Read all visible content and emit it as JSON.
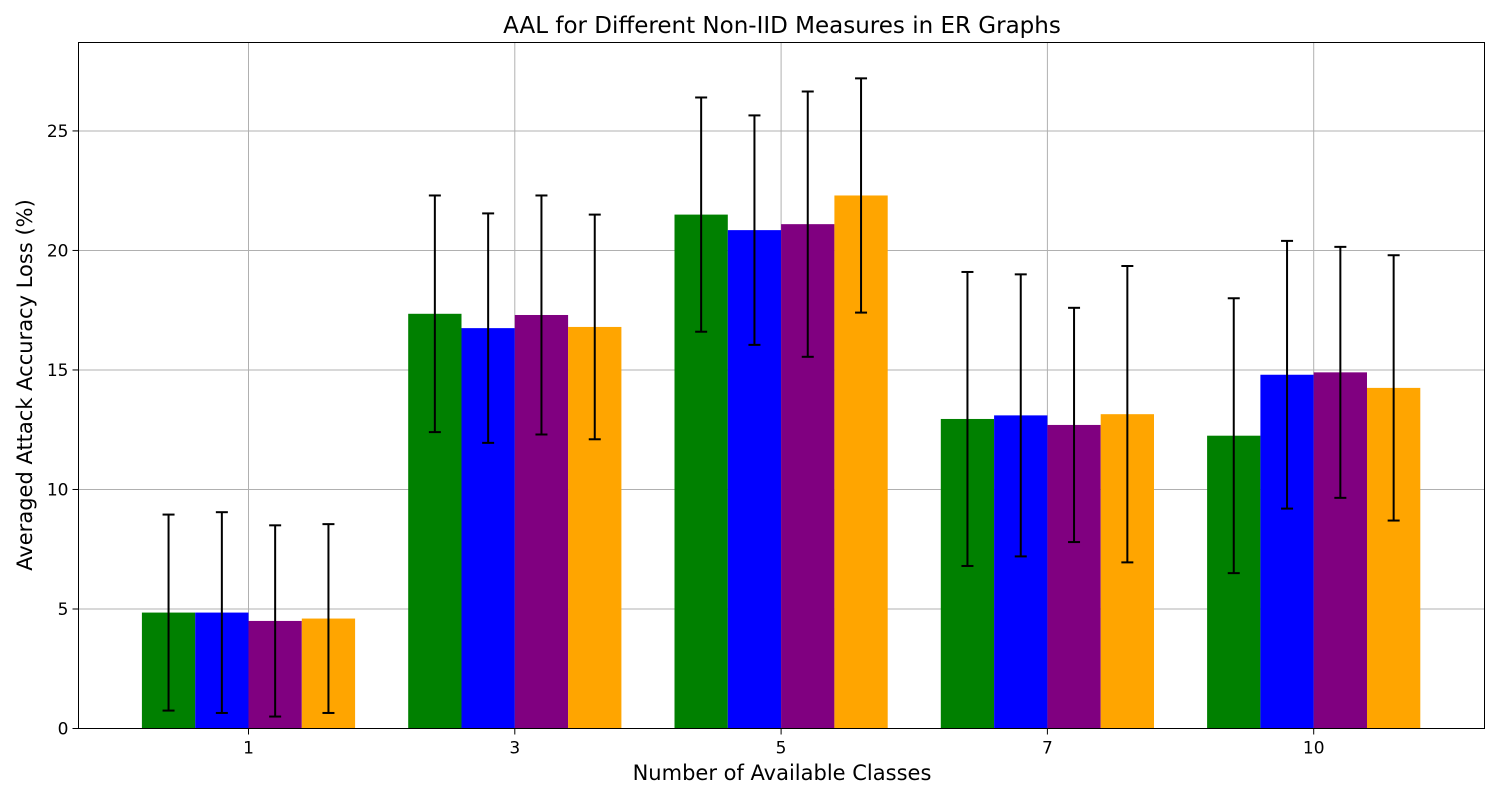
{
  "chart_data": {
    "type": "bar",
    "title": "AAL for Different Non-IID Measures in ER Graphs",
    "xlabel": "Number of Available Classes",
    "ylabel": "Averaged Attack Accuracy Loss (%)",
    "categories": [
      "1",
      "3",
      "5",
      "7",
      "10"
    ],
    "ylim": [
      0,
      28.7
    ],
    "yticks": [
      0,
      5,
      10,
      15,
      20,
      25
    ],
    "grid": true,
    "legend": "none",
    "series": [
      {
        "color": "#008000",
        "values": [
          4.85,
          17.35,
          21.5,
          12.95,
          12.25
        ],
        "errors": [
          4.1,
          4.95,
          4.9,
          6.15,
          5.75
        ]
      },
      {
        "color": "#0000ff",
        "values": [
          4.85,
          16.75,
          20.85,
          13.1,
          14.8
        ],
        "errors": [
          4.2,
          4.8,
          4.8,
          5.9,
          5.6
        ]
      },
      {
        "color": "#800080",
        "values": [
          4.5,
          17.3,
          21.1,
          12.7,
          14.9
        ],
        "errors": [
          4.0,
          5.0,
          5.55,
          4.9,
          5.25
        ]
      },
      {
        "color": "#ffa500",
        "values": [
          4.6,
          16.8,
          22.3,
          13.15,
          14.25
        ],
        "errors": [
          3.95,
          4.7,
          4.9,
          6.2,
          5.55
        ]
      }
    ]
  }
}
